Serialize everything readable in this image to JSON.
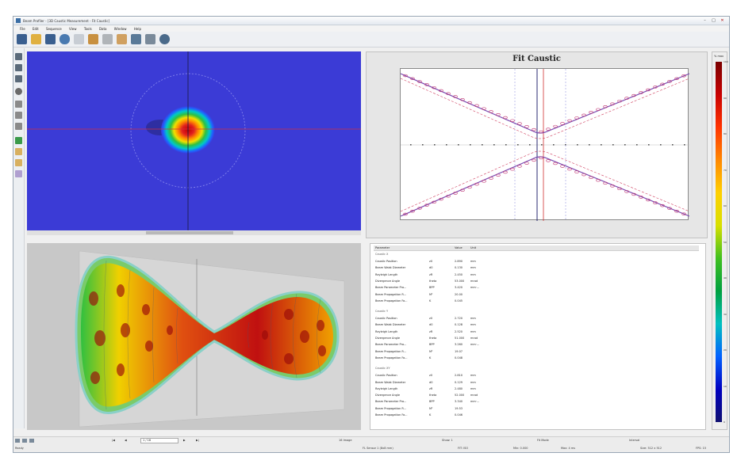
{
  "window": {
    "title": "Beam Profiler - [3D Caustic Measurement - Fit Caustic]",
    "minimize": "–",
    "maximize": "□",
    "close": "✕"
  },
  "menu": [
    "File",
    "Edit",
    "Sequence",
    "View",
    "Tools",
    "Data",
    "Window",
    "Help"
  ],
  "toolbar": {
    "buttons": [
      "save-icon",
      "open-folder-icon",
      "save-as-icon",
      "undo-icon",
      "redo-icon",
      "clipboard-icon",
      "report-icon",
      "settings-icon",
      "chart-icon",
      "print-icon",
      "help-icon"
    ]
  },
  "fit": {
    "title": "Fit Caustic"
  },
  "table": {
    "headers": [
      "Parameter",
      "",
      "Value",
      "Unit"
    ],
    "groups": [
      {
        "name": "Caustic X",
        "rows": [
          [
            "Caustic Position",
            "z0",
            "2.890",
            "mm"
          ],
          [
            "Beam Waist Diameter",
            "d0",
            "0.130",
            "mm"
          ],
          [
            "Rayleigh Length",
            "zR",
            "2.450",
            "mm"
          ],
          [
            "Divergence Angle",
            "theta",
            "53.000",
            "mrad"
          ],
          [
            "Beam Parameter Pro...",
            "BPP",
            "3.420",
            "mm·..."
          ],
          [
            "Beam Propagation R...",
            "M²",
            "20.00",
            ""
          ],
          [
            "Beam Propagation Fa...",
            "K",
            "0.045",
            ""
          ]
        ]
      },
      {
        "name": "Caustic Y",
        "rows": [
          [
            "Caustic Position",
            "z0",
            "2.720",
            "mm"
          ],
          [
            "Beam Waist Diameter",
            "d0",
            "0.128",
            "mm"
          ],
          [
            "Rayleigh Length",
            "zR",
            "2.520",
            "mm"
          ],
          [
            "Divergence Angle",
            "theta",
            "51.000",
            "mrad"
          ],
          [
            "Beam Parameter Pro...",
            "BPP",
            "3.260",
            "mm·..."
          ],
          [
            "Beam Propagation R...",
            "M²",
            "19.07",
            ""
          ],
          [
            "Beam Propagation Fa...",
            "K",
            "0.048",
            ""
          ]
        ]
      },
      {
        "name": "Caustic XY",
        "rows": [
          [
            "Caustic Position",
            "z0",
            "2.810",
            "mm"
          ],
          [
            "Beam Waist Diameter",
            "d0",
            "0.129",
            "mm"
          ],
          [
            "Rayleigh Length",
            "zR",
            "2.480",
            "mm"
          ],
          [
            "Divergence Angle",
            "theta",
            "52.000",
            "mrad"
          ],
          [
            "Beam Parameter Pro...",
            "BPP",
            "3.340",
            "mm·..."
          ],
          [
            "Beam Propagation R...",
            "M²",
            "19.53",
            ""
          ],
          [
            "Beam Propagation Fa...",
            "K",
            "0.046",
            ""
          ]
        ]
      }
    ]
  },
  "colorbar": {
    "label": "% max",
    "ticks": [
      "100",
      "90",
      "80",
      "70",
      "60",
      "50",
      "40",
      "30",
      "20",
      "10",
      "0"
    ]
  },
  "status": {
    "left": "Ready",
    "page": "1 / 16",
    "frames": "16 Image",
    "sensor": "FL Sensor 1 (8x8 mm)",
    "fit": "FIT: ISO",
    "min": "Min: 0.000",
    "max": "Max: 4 ms",
    "mode": "Fit Mode",
    "interval": "Interval",
    "size": "Size: 512 x 512",
    "fps": "FPS: 15",
    "extra": "Show: 1"
  }
}
